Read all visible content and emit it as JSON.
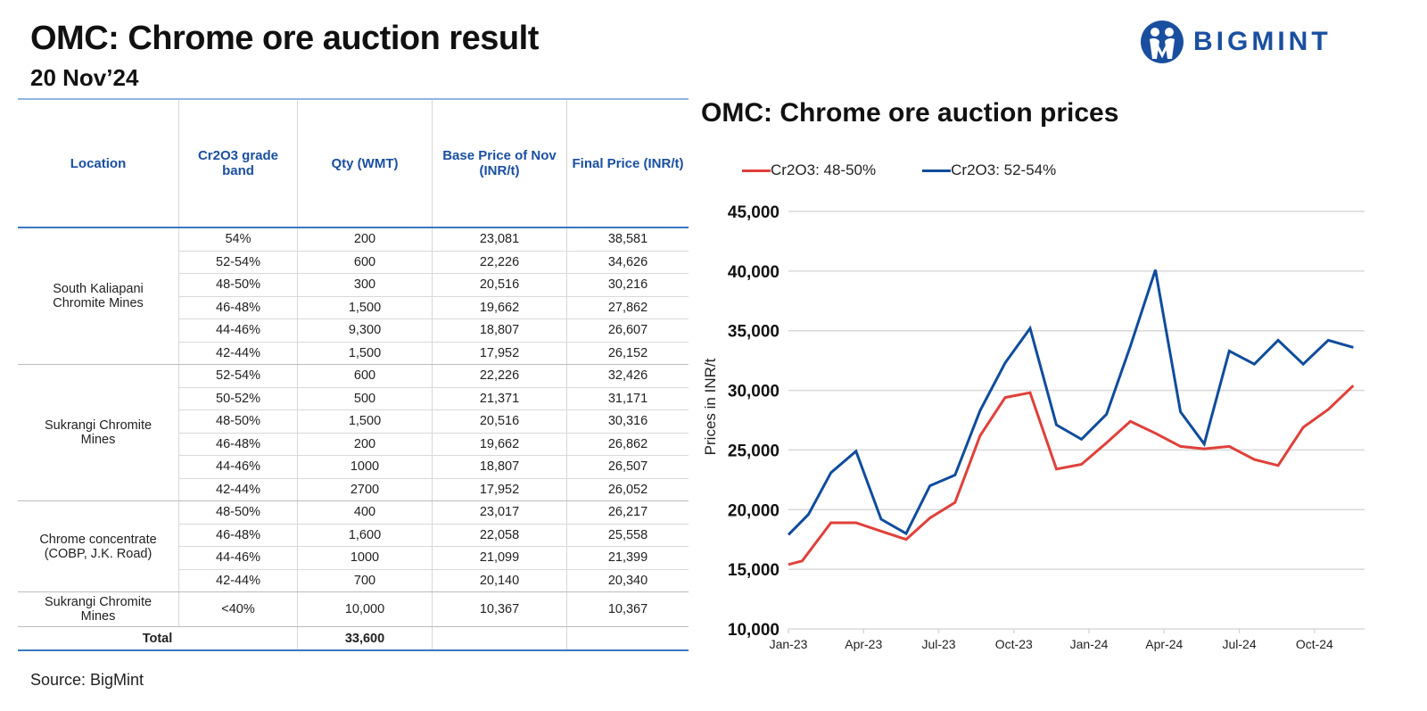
{
  "header": {
    "title": "OMC: Chrome ore auction result",
    "subtitle": "20 Nov’24",
    "logo_text": "BIGMINT"
  },
  "table": {
    "columns": [
      "Location",
      "Cr2O3 grade band",
      "Qty (WMT)",
      "Base Price of Nov (INR/t)",
      "Final Price (INR/t)"
    ],
    "groups": [
      {
        "location": "South Kaliapani Chromite Mines",
        "rows": [
          {
            "grade": "54%",
            "qty": "200",
            "base": "23,081",
            "final": "38,581"
          },
          {
            "grade": "52-54%",
            "qty": "600",
            "base": "22,226",
            "final": "34,626"
          },
          {
            "grade": "48-50%",
            "qty": "300",
            "base": "20,516",
            "final": "30,216"
          },
          {
            "grade": "46-48%",
            "qty": "1,500",
            "base": "19,662",
            "final": "27,862"
          },
          {
            "grade": "44-46%",
            "qty": "9,300",
            "base": "18,807",
            "final": "26,607"
          },
          {
            "grade": "42-44%",
            "qty": "1,500",
            "base": "17,952",
            "final": "26,152"
          }
        ]
      },
      {
        "location": "Sukrangi Chromite Mines",
        "rows": [
          {
            "grade": "52-54%",
            "qty": "600",
            "base": "22,226",
            "final": "32,426"
          },
          {
            "grade": "50-52%",
            "qty": "500",
            "base": "21,371",
            "final": "31,171"
          },
          {
            "grade": "48-50%",
            "qty": "1,500",
            "base": "20,516",
            "final": "30,316"
          },
          {
            "grade": "46-48%",
            "qty": "200",
            "base": "19,662",
            "final": "26,862"
          },
          {
            "grade": "44-46%",
            "qty": "1000",
            "base": "18,807",
            "final": "26,507"
          },
          {
            "grade": "42-44%",
            "qty": "2700",
            "base": "17,952",
            "final": "26,052"
          }
        ]
      },
      {
        "location": "Chrome concentrate (COBP, J.K. Road)",
        "rows": [
          {
            "grade": "48-50%",
            "qty": "400",
            "base": "23,017",
            "final": "26,217"
          },
          {
            "grade": "46-48%",
            "qty": "1,600",
            "base": "22,058",
            "final": "25,558"
          },
          {
            "grade": "44-46%",
            "qty": "1000",
            "base": "21,099",
            "final": "21,399"
          },
          {
            "grade": "42-44%",
            "qty": "700",
            "base": "20,140",
            "final": "20,340"
          }
        ]
      },
      {
        "location": "Sukrangi Chromite Mines",
        "rows": [
          {
            "grade": "<40%",
            "qty": "10,000",
            "base": "10,367",
            "final": "10,367"
          }
        ]
      }
    ],
    "total": {
      "label": "Total",
      "qty": "33,600"
    }
  },
  "source": "Source: BigMint",
  "colors": {
    "brand_blue": "#1a4fa0",
    "series_red": "#e0403a",
    "series_blue": "#0f4c9c"
  },
  "chart_data": {
    "type": "line",
    "title": "OMC: Chrome ore auction prices",
    "xlabel": "",
    "ylabel": "Prices in INR/t",
    "ylim": [
      10000,
      45000
    ],
    "yticks": [
      10000,
      15000,
      20000,
      25000,
      30000,
      35000,
      40000,
      45000
    ],
    "ytick_labels": [
      "10,000",
      "15,000",
      "20,000",
      "25,000",
      "30,000",
      "35,000",
      "40,000",
      "45,000"
    ],
    "xlim_months": [
      0,
      23
    ],
    "xticks_months": [
      0,
      3,
      6,
      9,
      12,
      15,
      18,
      21
    ],
    "xtick_labels": [
      "Jan-23",
      "Apr-23",
      "Jul-23",
      "Oct-23",
      "Jan-24",
      "Apr-24",
      "Jul-24",
      "Oct-24"
    ],
    "grid": true,
    "legend_position": "top-left",
    "series": [
      {
        "name": "Cr2O3: 48-50%",
        "color": "#e0403a",
        "x_months": [
          0,
          0.55,
          1.7,
          2.7,
          3.7,
          4.7,
          5.65,
          6.65,
          7.65,
          8.65,
          9.65,
          10.7,
          11.7,
          12.7,
          13.65,
          14.65,
          15.65,
          16.6,
          17.6,
          18.6,
          19.55,
          20.55,
          21.55,
          22.55
        ],
        "values": [
          15400,
          15700,
          18900,
          18900,
          18200,
          17500,
          19300,
          20600,
          26200,
          29400,
          29800,
          23400,
          23800,
          25600,
          27400,
          26400,
          25300,
          25100,
          25300,
          24200,
          23700,
          26900,
          28400,
          30400
        ]
      },
      {
        "name": "Cr2O3: 52-54%",
        "color": "#0f4c9c",
        "x_months": [
          0,
          0.8,
          1.7,
          2.7,
          3.7,
          4.7,
          5.65,
          6.65,
          7.65,
          8.65,
          9.65,
          10.7,
          11.7,
          12.7,
          13.65,
          14.65,
          15.65,
          16.6,
          17.6,
          18.6,
          19.55,
          20.55,
          21.55,
          22.55
        ],
        "values": [
          17900,
          19600,
          23100,
          24900,
          19200,
          18000,
          22000,
          22900,
          28300,
          32300,
          35200,
          27100,
          25900,
          28000,
          33700,
          40100,
          28200,
          25500,
          33300,
          32200,
          34200,
          32200,
          34200,
          33600
        ]
      }
    ]
  }
}
